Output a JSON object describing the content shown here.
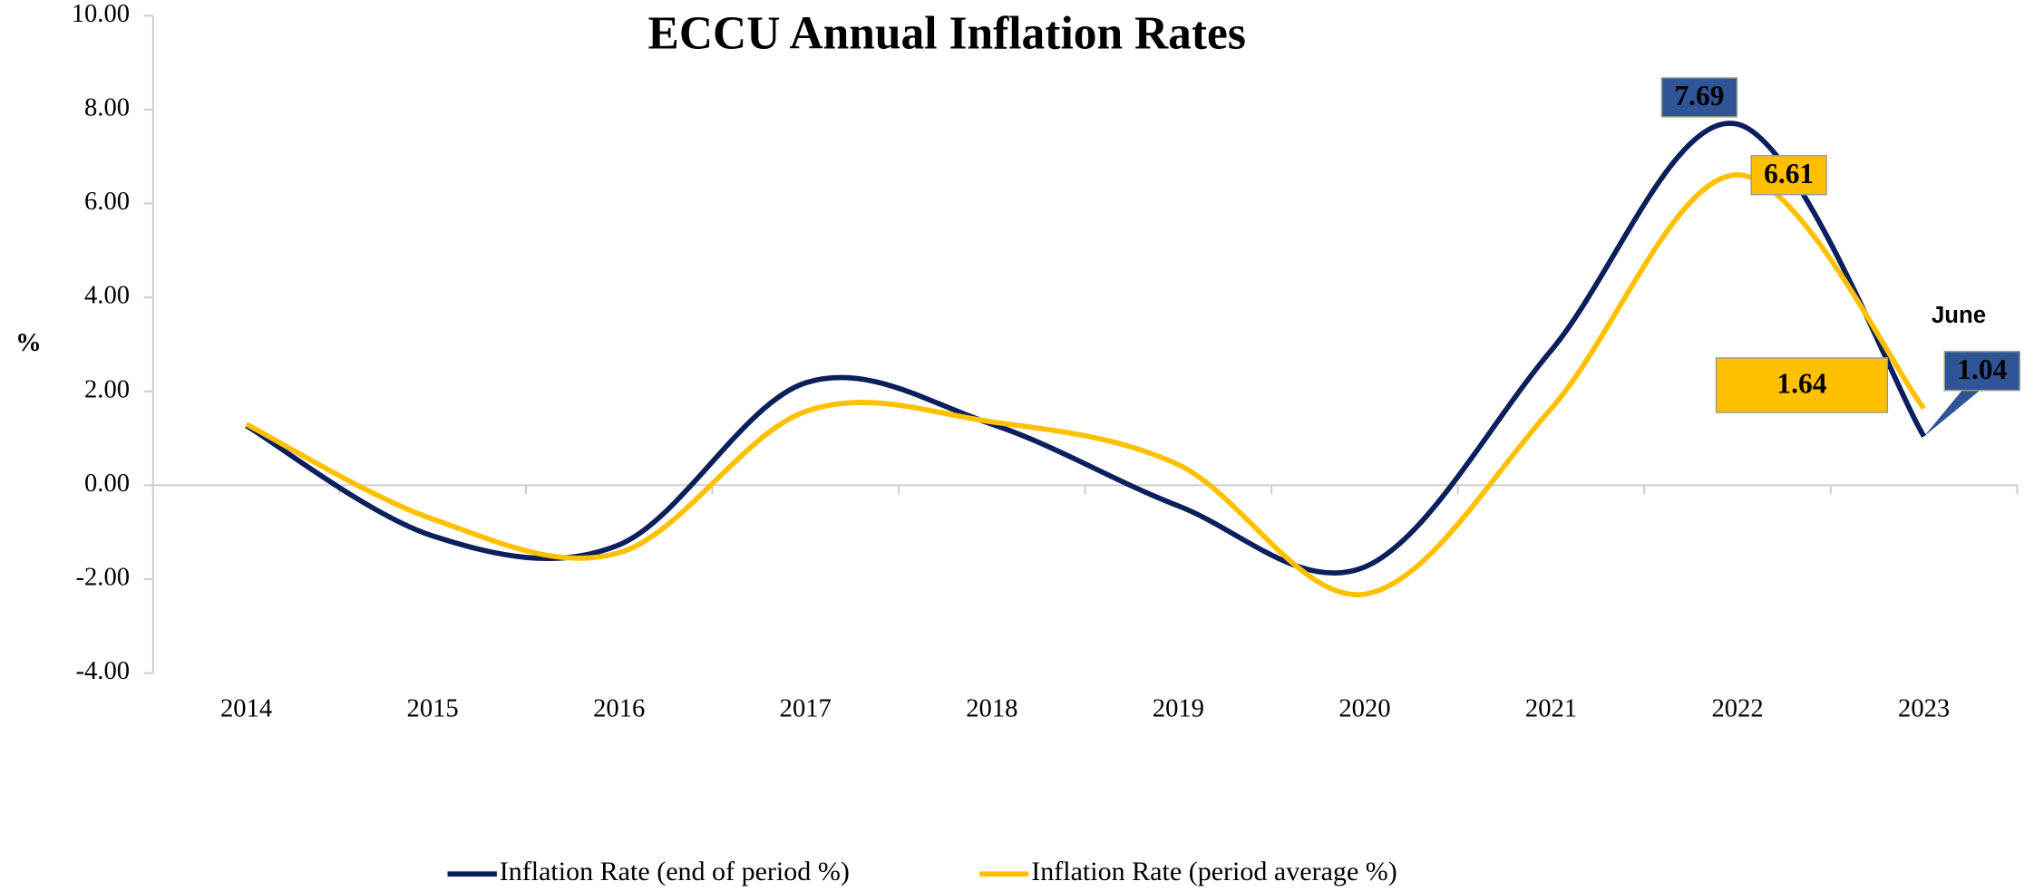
{
  "chart_data": {
    "type": "line",
    "title": "ECCU Annual Inflation Rates",
    "y_label": "%",
    "annotation": "June",
    "categories": [
      "2014",
      "2015",
      "2016",
      "2017",
      "2018",
      "2019",
      "2020",
      "2021",
      "2022",
      "2023"
    ],
    "series": [
      {
        "name": "Inflation Rate (end of period %)",
        "color": "#0b1f5c",
        "values": [
          1.27,
          -1.08,
          -1.27,
          2.18,
          1.3,
          -0.44,
          -1.74,
          2.87,
          7.69,
          1.04
        ]
      },
      {
        "name": "Inflation Rate (period average %)",
        "color": "#ffc000",
        "values": [
          1.3,
          -0.72,
          -1.44,
          1.57,
          1.35,
          0.44,
          -2.32,
          1.63,
          6.61,
          1.64
        ]
      }
    ],
    "ylim": [
      -4,
      10
    ],
    "yticks": [
      {
        "value": -4,
        "label": "-4.00"
      },
      {
        "value": -2,
        "label": "-2.00"
      },
      {
        "value": 0,
        "label": "0.00"
      },
      {
        "value": 2,
        "label": "2.00"
      },
      {
        "value": 4,
        "label": "4.00"
      },
      {
        "value": 6,
        "label": "6.00"
      },
      {
        "value": 8,
        "label": "8.00"
      },
      {
        "value": 10,
        "label": "10.00"
      }
    ],
    "grid": false,
    "legend": "bottom"
  }
}
